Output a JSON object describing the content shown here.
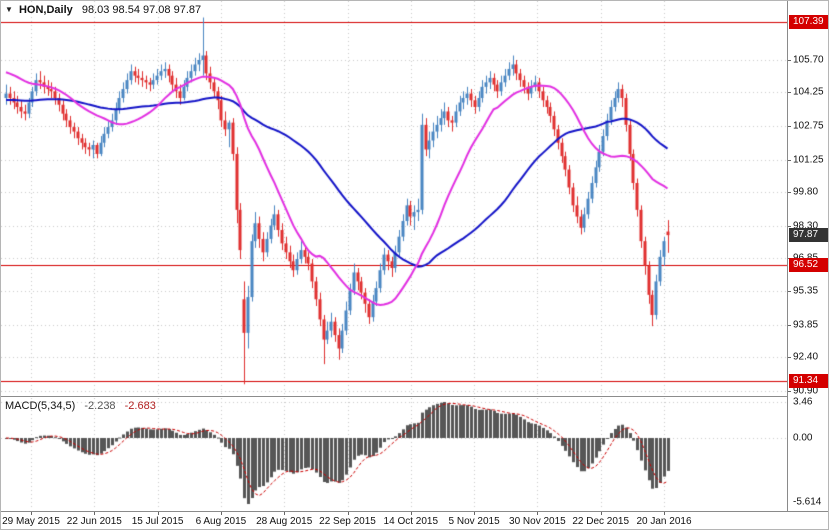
{
  "header": {
    "symbol_label": "HON,Daily",
    "ohlc_values": "98.03 98.54 97.08 97.87"
  },
  "icons": {
    "symbol_dropdown": "▼"
  },
  "colors": {
    "background": "#ffffff",
    "grid": "#c9c9c9",
    "candle_up": "#4a86c2",
    "candle_down": "#e02f2f",
    "ma_fast": "#e230e2",
    "ma_slow": "#1414c8",
    "level_red": "#d40000",
    "badge_current_bg": "#333333",
    "histogram": "#565656",
    "signal": "#cc0000",
    "axis_text": "#111111"
  },
  "chart_data": {
    "type": "candlestick",
    "symbol": "HON",
    "timeframe": "Daily",
    "title": "HON,Daily",
    "last_values": {
      "open": 98.03,
      "high": 98.54,
      "low": 97.08,
      "close": 97.87
    },
    "y_axis": {
      "ticks": [
        "105.70",
        "104.25",
        "102.75",
        "101.25",
        "99.80",
        "98.30",
        "96.85",
        "95.35",
        "93.85",
        "92.40",
        "90.90"
      ],
      "tick_values": [
        105.7,
        104.25,
        102.75,
        101.25,
        99.8,
        98.3,
        96.85,
        95.35,
        93.85,
        92.4,
        90.9
      ]
    },
    "x_labels": [
      "29 May 2015",
      "22 Jun 2015",
      "15 Jul 2015",
      "6 Aug 2015",
      "28 Aug 2015",
      "22 Sep 2015",
      "14 Oct 2015",
      "5 Nov 2015",
      "30 Nov 2015",
      "22 Dec 2015",
      "20 Jan 2016"
    ],
    "levels": [
      {
        "value": 107.39,
        "label": "107.39",
        "color": "#d40000"
      },
      {
        "value": 96.52,
        "label": "96.52",
        "color": "#d40000"
      },
      {
        "value": 91.34,
        "label": "91.34",
        "color": "#d40000"
      }
    ],
    "current_price": {
      "value": 97.87,
      "label": "97.87"
    },
    "overlays": [
      {
        "name": "ma-slow",
        "type": "sma",
        "period": 50,
        "seed": 103.9,
        "color": "#1414c8"
      },
      {
        "name": "ma-fast",
        "type": "sma",
        "period": 20,
        "seed": 105.2,
        "color": "#e230e2"
      }
    ],
    "indicator": {
      "type": "macd",
      "label": "MACD(5,34,5)",
      "fast": 5,
      "slow": 34,
      "signal_period": 5,
      "value": "-2.238",
      "signal_value": "-2.683",
      "axis_ticks": [
        "3.46",
        "0.00",
        "-5.614"
      ]
    },
    "candles": [
      [
        104.0,
        104.6,
        103.7,
        104.2
      ],
      [
        104.2,
        104.5,
        103.7,
        104.0
      ],
      [
        104.0,
        104.3,
        103.5,
        103.8
      ],
      [
        103.8,
        104.1,
        103.3,
        103.6
      ],
      [
        103.6,
        103.9,
        103.1,
        103.4
      ],
      [
        103.4,
        103.7,
        103.0,
        103.3
      ],
      [
        103.3,
        104.0,
        103.1,
        103.8
      ],
      [
        103.8,
        104.5,
        103.6,
        104.3
      ],
      [
        104.3,
        105.1,
        104.1,
        104.8
      ],
      [
        104.8,
        105.2,
        104.4,
        104.7
      ],
      [
        104.7,
        105.0,
        104.2,
        104.5
      ],
      [
        104.5,
        104.8,
        104.1,
        104.4
      ],
      [
        104.4,
        104.7,
        104.0,
        104.3
      ],
      [
        104.3,
        104.5,
        103.7,
        104.0
      ],
      [
        104.0,
        104.2,
        103.4,
        103.7
      ],
      [
        103.7,
        103.9,
        103.0,
        103.3
      ],
      [
        103.3,
        103.5,
        102.7,
        103.0
      ],
      [
        103.0,
        103.2,
        102.4,
        102.7
      ],
      [
        102.7,
        102.9,
        102.2,
        102.5
      ],
      [
        102.5,
        102.7,
        101.9,
        102.2
      ],
      [
        102.2,
        102.4,
        101.7,
        102.0
      ],
      [
        102.0,
        102.2,
        101.5,
        101.8
      ],
      [
        101.8,
        102.0,
        101.4,
        101.7
      ],
      [
        101.7,
        102.1,
        101.3,
        101.9
      ],
      [
        101.9,
        102.0,
        101.3,
        101.5
      ],
      [
        101.5,
        102.3,
        101.4,
        102.0
      ],
      [
        102.0,
        102.7,
        101.8,
        102.4
      ],
      [
        102.4,
        103.0,
        102.2,
        102.7
      ],
      [
        102.7,
        103.3,
        102.5,
        103.0
      ],
      [
        103.0,
        103.8,
        102.8,
        103.5
      ],
      [
        103.5,
        104.3,
        103.3,
        104.0
      ],
      [
        104.0,
        104.7,
        103.8,
        104.4
      ],
      [
        104.4,
        105.1,
        104.2,
        104.8
      ],
      [
        104.8,
        105.5,
        104.6,
        105.2
      ],
      [
        105.2,
        105.4,
        104.7,
        105.0
      ],
      [
        105.0,
        105.3,
        104.6,
        104.9
      ],
      [
        104.9,
        105.2,
        104.5,
        104.8
      ],
      [
        104.8,
        105.0,
        104.4,
        104.7
      ],
      [
        104.7,
        104.9,
        104.3,
        104.6
      ],
      [
        104.6,
        105.1,
        104.4,
        104.8
      ],
      [
        104.8,
        105.3,
        104.6,
        105.0
      ],
      [
        105.0,
        105.5,
        104.8,
        105.2
      ],
      [
        105.2,
        105.6,
        104.9,
        105.3
      ],
      [
        105.3,
        105.5,
        104.7,
        105.0
      ],
      [
        105.0,
        105.2,
        104.3,
        104.6
      ],
      [
        104.6,
        104.9,
        104.0,
        104.3
      ],
      [
        104.3,
        104.6,
        103.7,
        104.0
      ],
      [
        104.0,
        104.8,
        103.9,
        104.5
      ],
      [
        104.5,
        105.2,
        104.3,
        104.9
      ],
      [
        104.9,
        105.5,
        104.7,
        105.2
      ],
      [
        105.2,
        105.8,
        105.0,
        105.5
      ],
      [
        105.5,
        106.0,
        105.2,
        105.7
      ],
      [
        105.7,
        107.6,
        105.0,
        105.9
      ],
      [
        105.9,
        106.1,
        104.8,
        105.1
      ],
      [
        105.1,
        105.4,
        104.4,
        104.7
      ],
      [
        104.7,
        104.9,
        104.0,
        104.3
      ],
      [
        104.3,
        104.5,
        103.5,
        103.9
      ],
      [
        103.9,
        104.1,
        102.7,
        103.0
      ],
      [
        103.0,
        103.4,
        102.3,
        102.6
      ],
      [
        102.6,
        103.0,
        101.8,
        102.9
      ],
      [
        102.9,
        103.1,
        101.2,
        101.5
      ],
      [
        101.5,
        101.8,
        98.4,
        99.0
      ],
      [
        99.0,
        99.3,
        96.8,
        97.2
      ],
      [
        95.0,
        95.8,
        91.2,
        93.5
      ],
      [
        93.5,
        95.6,
        92.8,
        95.1
      ],
      [
        95.1,
        97.9,
        94.9,
        97.6
      ],
      [
        97.6,
        98.9,
        97.3,
        98.4
      ],
      [
        98.4,
        98.7,
        97.3,
        97.7
      ],
      [
        97.7,
        98.0,
        96.7,
        97.1
      ],
      [
        97.1,
        98.0,
        96.9,
        97.7
      ],
      [
        97.7,
        98.6,
        97.5,
        98.3
      ],
      [
        98.3,
        99.2,
        98.1,
        98.8
      ],
      [
        98.8,
        99.0,
        97.8,
        98.1
      ],
      [
        98.1,
        98.4,
        97.2,
        97.5
      ],
      [
        97.5,
        97.8,
        96.8,
        97.1
      ],
      [
        97.1,
        97.4,
        96.4,
        96.7
      ],
      [
        96.7,
        97.0,
        96.0,
        96.3
      ],
      [
        96.3,
        97.1,
        96.1,
        96.8
      ],
      [
        96.8,
        97.6,
        96.6,
        97.2
      ],
      [
        97.2,
        97.4,
        96.6,
        96.9
      ],
      [
        96.9,
        97.1,
        96.3,
        96.6
      ],
      [
        96.6,
        96.8,
        95.5,
        95.8
      ],
      [
        95.8,
        96.0,
        94.7,
        95.0
      ],
      [
        95.0,
        95.3,
        93.8,
        94.1
      ],
      [
        94.1,
        94.3,
        92.1,
        93.2
      ],
      [
        93.2,
        94.0,
        93.0,
        93.6
      ],
      [
        93.6,
        94.4,
        93.3,
        94.0
      ],
      [
        94.0,
        94.2,
        93.1,
        93.4
      ],
      [
        93.4,
        93.7,
        92.3,
        92.8
      ],
      [
        92.8,
        93.9,
        92.6,
        93.6
      ],
      [
        93.6,
        94.9,
        93.4,
        94.5
      ],
      [
        94.5,
        95.7,
        94.3,
        95.4
      ],
      [
        95.4,
        96.6,
        95.2,
        96.2
      ],
      [
        96.2,
        96.4,
        95.4,
        95.8
      ],
      [
        95.8,
        96.0,
        95.0,
        95.3
      ],
      [
        95.3,
        95.5,
        94.4,
        94.8
      ],
      [
        94.8,
        95.0,
        93.9,
        94.2
      ],
      [
        94.2,
        95.2,
        94.0,
        94.9
      ],
      [
        94.9,
        95.8,
        94.7,
        95.5
      ],
      [
        95.5,
        96.6,
        95.3,
        96.3
      ],
      [
        96.3,
        97.3,
        96.1,
        97.0
      ],
      [
        97.0,
        97.2,
        96.3,
        96.7
      ],
      [
        96.7,
        96.9,
        96.0,
        96.4
      ],
      [
        96.4,
        97.4,
        96.2,
        97.1
      ],
      [
        97.1,
        98.1,
        96.9,
        97.8
      ],
      [
        97.8,
        98.8,
        97.6,
        98.5
      ],
      [
        98.5,
        99.5,
        98.3,
        99.2
      ],
      [
        99.2,
        99.4,
        98.3,
        98.7
      ],
      [
        98.7,
        99.2,
        98.1,
        98.9
      ],
      [
        98.9,
        99.5,
        98.5,
        99.0
      ],
      [
        99.0,
        103.3,
        98.8,
        102.8
      ],
      [
        102.8,
        103.1,
        101.4,
        101.7
      ],
      [
        101.7,
        102.5,
        101.3,
        102.1
      ],
      [
        102.1,
        102.9,
        101.8,
        102.5
      ],
      [
        102.5,
        103.2,
        102.2,
        102.8
      ],
      [
        102.8,
        103.5,
        102.5,
        103.1
      ],
      [
        103.1,
        103.8,
        102.8,
        103.4
      ],
      [
        103.4,
        103.6,
        102.7,
        103.0
      ],
      [
        103.0,
        103.2,
        102.5,
        102.9
      ],
      [
        102.9,
        103.7,
        102.7,
        103.4
      ],
      [
        103.4,
        104.1,
        103.2,
        103.8
      ],
      [
        103.8,
        104.3,
        103.5,
        104.0
      ],
      [
        104.0,
        104.5,
        103.7,
        104.2
      ],
      [
        104.2,
        104.4,
        103.6,
        103.9
      ],
      [
        103.9,
        104.1,
        103.3,
        103.6
      ],
      [
        103.6,
        104.3,
        103.4,
        104.0
      ],
      [
        104.0,
        104.8,
        103.8,
        104.5
      ],
      [
        104.5,
        105.0,
        104.2,
        104.7
      ],
      [
        104.7,
        105.2,
        104.4,
        104.9
      ],
      [
        104.9,
        105.1,
        104.3,
        104.6
      ],
      [
        104.6,
        104.8,
        104.0,
        104.3
      ],
      [
        104.3,
        105.0,
        104.1,
        104.7
      ],
      [
        104.7,
        105.3,
        104.5,
        105.0
      ],
      [
        105.0,
        105.6,
        104.8,
        105.3
      ],
      [
        105.3,
        105.9,
        105.0,
        105.5
      ],
      [
        105.5,
        105.7,
        104.8,
        105.1
      ],
      [
        105.1,
        105.3,
        104.5,
        104.8
      ],
      [
        104.8,
        105.0,
        104.2,
        104.5
      ],
      [
        104.5,
        104.7,
        103.9,
        104.2
      ],
      [
        104.2,
        104.8,
        104.0,
        104.5
      ],
      [
        104.5,
        105.0,
        104.3,
        104.7
      ],
      [
        104.7,
        104.9,
        104.0,
        104.3
      ],
      [
        104.3,
        104.5,
        103.6,
        103.9
      ],
      [
        103.9,
        104.1,
        103.3,
        103.6
      ],
      [
        103.6,
        103.8,
        102.9,
        103.2
      ],
      [
        103.2,
        103.4,
        102.3,
        102.6
      ],
      [
        102.6,
        102.8,
        101.7,
        102.0
      ],
      [
        102.0,
        102.2,
        101.1,
        101.4
      ],
      [
        101.4,
        101.6,
        100.5,
        100.8
      ],
      [
        100.8,
        101.0,
        99.7,
        100.0
      ],
      [
        100.0,
        100.2,
        98.9,
        99.2
      ],
      [
        99.2,
        99.6,
        98.4,
        98.7
      ],
      [
        98.7,
        99.0,
        97.9,
        98.2
      ],
      [
        98.2,
        99.1,
        98.0,
        98.8
      ],
      [
        98.8,
        99.8,
        98.6,
        99.5
      ],
      [
        99.5,
        100.5,
        99.3,
        100.2
      ],
      [
        100.2,
        101.2,
        100.0,
        100.9
      ],
      [
        100.9,
        101.9,
        100.7,
        101.6
      ],
      [
        101.6,
        102.6,
        101.4,
        102.3
      ],
      [
        102.3,
        103.3,
        102.1,
        103.0
      ],
      [
        103.0,
        103.9,
        102.8,
        103.6
      ],
      [
        103.6,
        104.3,
        103.4,
        104.0
      ],
      [
        104.0,
        104.7,
        103.8,
        104.4
      ],
      [
        104.4,
        104.6,
        103.6,
        104.0
      ],
      [
        104.0,
        104.2,
        102.5,
        102.8
      ],
      [
        102.8,
        103.0,
        101.2,
        101.5
      ],
      [
        101.5,
        101.7,
        99.9,
        100.2
      ],
      [
        100.2,
        100.4,
        98.7,
        99.0
      ],
      [
        99.0,
        99.2,
        97.3,
        97.6
      ],
      [
        97.6,
        97.8,
        96.1,
        96.5
      ],
      [
        96.5,
        96.7,
        94.8,
        95.2
      ],
      [
        95.2,
        95.4,
        93.8,
        94.3
      ],
      [
        94.3,
        96.1,
        94.1,
        95.8
      ],
      [
        95.8,
        97.2,
        95.6,
        96.9
      ],
      [
        96.9,
        97.8,
        96.5,
        97.6
      ],
      [
        98.03,
        98.54,
        97.08,
        97.87
      ]
    ]
  }
}
